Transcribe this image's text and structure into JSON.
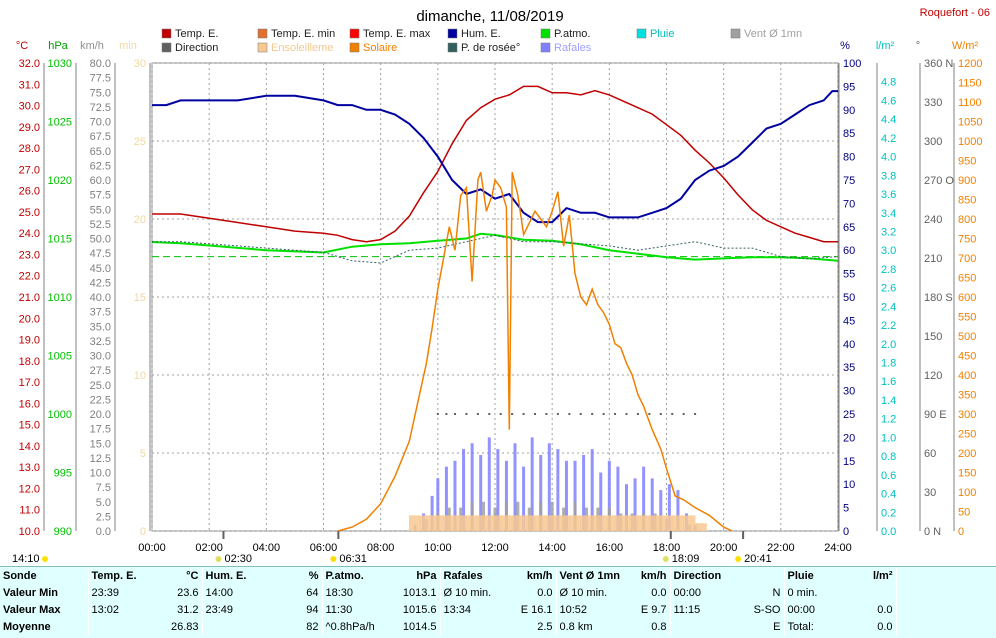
{
  "title": "dimanche, 11/08/2019",
  "station": "Roquefort - 06",
  "legend": [
    {
      "label": "Temp. E.",
      "color": "#c00000"
    },
    {
      "label": "Temp. E. min",
      "color": "#e07030"
    },
    {
      "label": "Temp. E. max",
      "color": "#ff0000"
    },
    {
      "label": "Hum. E.",
      "color": "#0000a0"
    },
    {
      "label": "P.atmo.",
      "color": "#00e000"
    },
    {
      "label": "Pluie",
      "color": "#00e0e0"
    },
    {
      "label": "Vent Ø 1mn",
      "color": "#a0a0a0"
    },
    {
      "label": "Direction",
      "color": "#606060"
    },
    {
      "label": "Ensoleilleme",
      "color": "#f8c890"
    },
    {
      "label": "Solaire",
      "color": "#f08000"
    },
    {
      "label": "P. de rosée°",
      "color": "#306060"
    },
    {
      "label": "Rafales",
      "color": "#8080ff"
    }
  ],
  "axis_units": {
    "temp": "°C",
    "pressure": "hPa",
    "wind": "km/h",
    "min": "min",
    "humidity": "%",
    "rain": "l/m²",
    "direction": "°",
    "solar": "W/m²"
  },
  "chart_data": {
    "type": "line",
    "x_unit": "hour",
    "xlim": [
      0,
      24
    ],
    "x_ticks": [
      "00:00",
      "02:00",
      "04:00",
      "06:00",
      "08:00",
      "10:00",
      "12:00",
      "14:00",
      "16:00",
      "18:00",
      "20:00",
      "22:00",
      "24:00"
    ],
    "axes": {
      "temp": {
        "range": [
          10,
          32
        ],
        "ticks": [
          "10.0",
          "11.0",
          "12.0",
          "13.0",
          "14.0",
          "15.0",
          "16.0",
          "17.0",
          "18.0",
          "19.0",
          "20.0",
          "21.0",
          "22.0",
          "23.0",
          "24.0",
          "25.0",
          "26.0",
          "27.0",
          "28.0",
          "29.0",
          "30.0",
          "31.0",
          "32.0"
        ],
        "color": "#c00000"
      },
      "pressure": {
        "range": [
          990,
          1030
        ],
        "ticks": [
          "990",
          "995",
          "1000",
          "1005",
          "1010",
          "1015",
          "1020",
          "1025",
          "1030"
        ],
        "color": "#00c000"
      },
      "wind": {
        "range": [
          0,
          80
        ],
        "ticks": [
          "0.0",
          "2.5",
          "5.0",
          "7.5",
          "10.0",
          "12.5",
          "15.0",
          "17.5",
          "20.0",
          "22.5",
          "25.0",
          "27.5",
          "30.0",
          "32.5",
          "35.0",
          "37.5",
          "40.0",
          "42.5",
          "45.0",
          "47.5",
          "50.0",
          "52.5",
          "55.0",
          "57.5",
          "60.0",
          "62.5",
          "65.0",
          "67.5",
          "70.0",
          "72.5",
          "75.0",
          "77.5",
          "80.0"
        ],
        "color": "#808080"
      },
      "sun_min": {
        "range": [
          0,
          30
        ],
        "ticks": [
          "0",
          "5",
          "10",
          "15",
          "20",
          "25",
          "30"
        ],
        "color": "#f0d8a0"
      },
      "humidity": {
        "range": [
          0,
          100
        ],
        "ticks": [
          "0",
          "5",
          "10",
          "15",
          "20",
          "25",
          "30",
          "35",
          "40",
          "45",
          "50",
          "55",
          "60",
          "65",
          "70",
          "75",
          "80",
          "85",
          "90",
          "95",
          "100"
        ],
        "color": "#000080"
      },
      "rain": {
        "range": [
          0,
          5
        ],
        "ticks": [
          "0.0",
          "0.2",
          "0.4",
          "0.6",
          "0.8",
          "1.0",
          "1.2",
          "1.4",
          "1.6",
          "1.8",
          "2.0",
          "2.2",
          "2.4",
          "2.6",
          "2.8",
          "3.0",
          "3.2",
          "3.4",
          "3.6",
          "3.8",
          "4.0",
          "4.2",
          "4.4",
          "4.6",
          "4.8"
        ],
        "color": "#00c0c0"
      },
      "direction": {
        "range": [
          0,
          360
        ],
        "ticks": [
          "0 N",
          "30",
          "60",
          "90 E",
          "120",
          "150",
          "180 S",
          "210",
          "240",
          "270 O",
          "300",
          "330",
          "360 N"
        ],
        "color": "#606060"
      },
      "solar": {
        "range": [
          0,
          1200
        ],
        "ticks": [
          "0",
          "50",
          "100",
          "150",
          "200",
          "250",
          "300",
          "350",
          "400",
          "450",
          "500",
          "550",
          "600",
          "650",
          "700",
          "750",
          "800",
          "850",
          "900",
          "950",
          "1000",
          "1050",
          "1100",
          "1150",
          "1200"
        ],
        "color": "#f08000"
      }
    },
    "series": [
      {
        "name": "Temp. E.",
        "axis": "temp",
        "color": "#c00000",
        "x": [
          0,
          1,
          2,
          3,
          4,
          5,
          6,
          6.5,
          7,
          7.5,
          8,
          8.5,
          9,
          9.5,
          10,
          10.5,
          11,
          11.5,
          12,
          12.5,
          13,
          13.5,
          14,
          14.5,
          15,
          15.5,
          16,
          16.5,
          17,
          17.5,
          18,
          18.5,
          19,
          19.5,
          20,
          20.5,
          21,
          21.5,
          22,
          22.5,
          23,
          23.5,
          24
        ],
        "y": [
          24.9,
          24.9,
          24.7,
          24.5,
          24.3,
          24.1,
          24.0,
          23.9,
          23.7,
          23.6,
          23.7,
          24.1,
          24.8,
          25.9,
          26.9,
          28.2,
          29.3,
          29.9,
          30.3,
          30.5,
          30.9,
          30.9,
          30.6,
          30.6,
          30.5,
          30.7,
          30.5,
          30.2,
          29.9,
          29.6,
          29.1,
          28.6,
          27.9,
          27.3,
          26.6,
          25.8,
          25.1,
          24.6,
          24.3,
          24.0,
          23.8,
          23.6,
          23.6
        ]
      },
      {
        "name": "Hum. E.",
        "axis": "humidity",
        "color": "#0000a0",
        "x": [
          0,
          0.5,
          1,
          2,
          3,
          4,
          5,
          6,
          6.5,
          7,
          7.5,
          8,
          8.5,
          9,
          9.5,
          10,
          10.5,
          11,
          11.5,
          12,
          12.5,
          13,
          13.5,
          14,
          14.5,
          15,
          15.5,
          16,
          16.5,
          17,
          17.5,
          18,
          18.5,
          19,
          19.5,
          20,
          20.5,
          21,
          21.5,
          22,
          22.5,
          23,
          23.5,
          23.8,
          24
        ],
        "y": [
          91,
          91,
          92,
          92,
          92,
          93,
          93,
          92,
          91,
          91,
          90,
          90,
          89,
          87,
          84,
          80,
          75,
          72,
          73,
          71,
          72,
          68,
          66,
          66,
          69,
          68,
          68,
          67,
          67,
          67,
          68,
          69,
          71,
          75,
          77,
          78,
          80,
          83,
          86,
          87,
          89,
          91,
          92,
          94,
          94
        ]
      },
      {
        "name": "P.atmo.",
        "axis": "pressure",
        "color": "#00e000",
        "x": [
          0,
          1,
          2,
          3,
          4,
          5,
          6,
          7,
          8,
          9,
          10,
          11,
          11.5,
          12,
          13,
          14,
          15,
          16,
          17,
          18,
          19,
          20,
          21,
          22,
          23,
          24
        ],
        "y": [
          1014.7,
          1014.6,
          1014.4,
          1014.2,
          1014.0,
          1013.9,
          1013.8,
          1014.3,
          1014.5,
          1014.6,
          1014.8,
          1015.0,
          1015.4,
          1015.3,
          1014.9,
          1014.8,
          1014.5,
          1014.0,
          1013.7,
          1013.4,
          1013.2,
          1013.3,
          1013.4,
          1013.4,
          1013.3,
          1013.1
        ]
      },
      {
        "name": "P. de rosée°",
        "axis": "temp",
        "color": "#306060",
        "dashed": true,
        "x": [
          0,
          1,
          2,
          3,
          4,
          5,
          6,
          7,
          8,
          9,
          10,
          11,
          12,
          13,
          14,
          15,
          16,
          17,
          18,
          19,
          20,
          21,
          22,
          23,
          24
        ],
        "y": [
          23.6,
          23.6,
          23.5,
          23.4,
          23.3,
          23.2,
          23.1,
          22.7,
          22.6,
          23.2,
          23.3,
          23.6,
          23.9,
          23.6,
          23.6,
          23.5,
          23.4,
          23.2,
          23.4,
          23.6,
          23.3,
          23.3,
          22.9,
          22.8,
          22.9
        ]
      },
      {
        "name": "Solaire",
        "axis": "solar",
        "color": "#f08000",
        "x": [
          6.5,
          7,
          7.5,
          8,
          8.5,
          9,
          9.3,
          9.6,
          9.8,
          10,
          10.2,
          10.4,
          10.6,
          10.8,
          11,
          11.2,
          11.4,
          11.5,
          11.7,
          11.9,
          12,
          12.2,
          12.4,
          12.5,
          12.6,
          12.8,
          13,
          13.2,
          13.4,
          13.6,
          13.8,
          14,
          14.2,
          14.4,
          14.6,
          14.8,
          15,
          15.2,
          15.4,
          15.6,
          15.8,
          16,
          16.2,
          16.4,
          16.6,
          16.8,
          17,
          17.2,
          17.5,
          17.8,
          18,
          18.3,
          18.6,
          19,
          19.5,
          20,
          20.3
        ],
        "y": [
          0,
          10,
          30,
          70,
          140,
          230,
          330,
          430,
          520,
          620,
          700,
          780,
          720,
          860,
          880,
          640,
          900,
          920,
          820,
          860,
          900,
          880,
          830,
          260,
          920,
          860,
          760,
          790,
          820,
          800,
          780,
          820,
          870,
          730,
          810,
          660,
          600,
          580,
          620,
          580,
          560,
          530,
          480,
          470,
          430,
          400,
          350,
          320,
          260,
          210,
          160,
          90,
          80,
          60,
          40,
          10,
          0
        ]
      },
      {
        "name": "Rafales",
        "axis": "wind",
        "color": "#8080ff",
        "bars": true,
        "x": [
          9.2,
          9.5,
          9.8,
          10,
          10.3,
          10.6,
          10.9,
          11.2,
          11.5,
          11.8,
          12.1,
          12.4,
          12.7,
          13,
          13.3,
          13.6,
          13.9,
          14.2,
          14.5,
          14.8,
          15.1,
          15.4,
          15.7,
          16,
          16.3,
          16.6,
          16.9,
          17.2,
          17.5,
          17.8,
          18.1,
          18.4,
          18.7,
          19
        ],
        "y": [
          1,
          3,
          6,
          9,
          11,
          12,
          14,
          15,
          13,
          16,
          14,
          12,
          15,
          11,
          16,
          13,
          15,
          14,
          12,
          12,
          13,
          14,
          10,
          12,
          11,
          8,
          9,
          11,
          9,
          7,
          8,
          7,
          3,
          1
        ]
      },
      {
        "name": "Vent Ø 1mn",
        "axis": "wind",
        "color": "#a0a0a0",
        "bars": true,
        "x": [
          9.2,
          9.6,
          10,
          10.4,
          10.8,
          11.2,
          11.6,
          12,
          12.4,
          12.8,
          13.2,
          13.6,
          14,
          14.4,
          14.8,
          15.2,
          15.6,
          16,
          16.4,
          16.8,
          17.2,
          17.6,
          18,
          18.4,
          18.8
        ],
        "y": [
          0.5,
          2,
          3,
          4,
          4,
          5,
          5,
          4,
          5,
          5,
          4,
          5,
          5,
          4,
          5,
          4,
          4,
          4,
          3,
          3,
          3,
          3,
          2,
          2,
          1
        ]
      },
      {
        "name": "Ensoleilleme",
        "axis": "sun_min",
        "color": "#f8c890",
        "bars": true,
        "x": [
          9.2,
          9.6,
          10,
          10.4,
          10.8,
          11.2,
          11.6,
          12,
          12.4,
          12.8,
          13.2,
          13.6,
          14,
          14.4,
          14.8,
          15.2,
          15.6,
          16,
          16.4,
          16.8,
          17.2,
          17.6,
          18,
          18.4,
          18.8,
          19.2
        ],
        "y": [
          1,
          1,
          1,
          1,
          1,
          1,
          1,
          1,
          1,
          1,
          1,
          1,
          1,
          1,
          1,
          1,
          1,
          1,
          1,
          1,
          1,
          1,
          1,
          1,
          1,
          0.5
        ]
      },
      {
        "name": "Direction",
        "axis": "direction",
        "color": "#606060",
        "dots": true,
        "x": [
          10,
          10.3,
          10.6,
          11,
          11.4,
          11.8,
          12.2,
          12.6,
          13,
          13.4,
          13.8,
          14.2,
          14.6,
          15,
          15.4,
          15.8,
          16.2,
          16.6,
          17,
          17.4,
          17.8,
          18.2,
          18.6,
          19
        ],
        "y": [
          90,
          90,
          90,
          90,
          90,
          90,
          90,
          90,
          90,
          90,
          90,
          90,
          90,
          90,
          90,
          90,
          90,
          90,
          90,
          90,
          90,
          90,
          90,
          90
        ]
      }
    ],
    "ref_line": {
      "axis": "temp",
      "value": 22.9,
      "color": "#00c000"
    },
    "day_markers": [
      {
        "x": 2.5,
        "label": "02:30",
        "symbol": "moon"
      },
      {
        "x": 6.52,
        "label": "06:31",
        "symbol": "sun"
      },
      {
        "x": 18.15,
        "label": "18:09",
        "symbol": "moon"
      },
      {
        "x": 20.68,
        "label": "20:41",
        "symbol": "sun"
      }
    ],
    "left_corner": "14:10"
  },
  "stats": {
    "headers": [
      "Sonde",
      "Temp. E.",
      "°C",
      "Hum. E.",
      "%",
      "P.atmo.",
      "hPa",
      "Rafales",
      "km/h",
      "Vent Ø 1mn",
      "km/h",
      "Direction",
      "",
      "Pluie",
      "l/m²"
    ],
    "rows": [
      {
        "label": "Valeur Min",
        "cells": [
          "23:39",
          "23.6",
          "14:00",
          "64",
          "18:30",
          "1013.1",
          "Ø 10 min.",
          "0.0",
          "Ø 10 min.",
          "0.0",
          "00:00",
          "N",
          "0 min.",
          ""
        ]
      },
      {
        "label": "Valeur Max",
        "cells": [
          "13:02",
          "31.2",
          "23:49",
          "94",
          "11:30",
          "1015.6",
          "13:34",
          "E 16.1",
          "10:52",
          "E 9.7",
          "11:15",
          "S-SO",
          "00:00",
          "0.0"
        ]
      },
      {
        "label": "Moyenne",
        "cells": [
          "",
          "26.83",
          "",
          "82",
          "^0.8hPa/h",
          "1014.5",
          "",
          "2.5",
          "0.8 km",
          "0.8",
          "",
          "E",
          "Total:",
          "0.0"
        ]
      }
    ]
  }
}
